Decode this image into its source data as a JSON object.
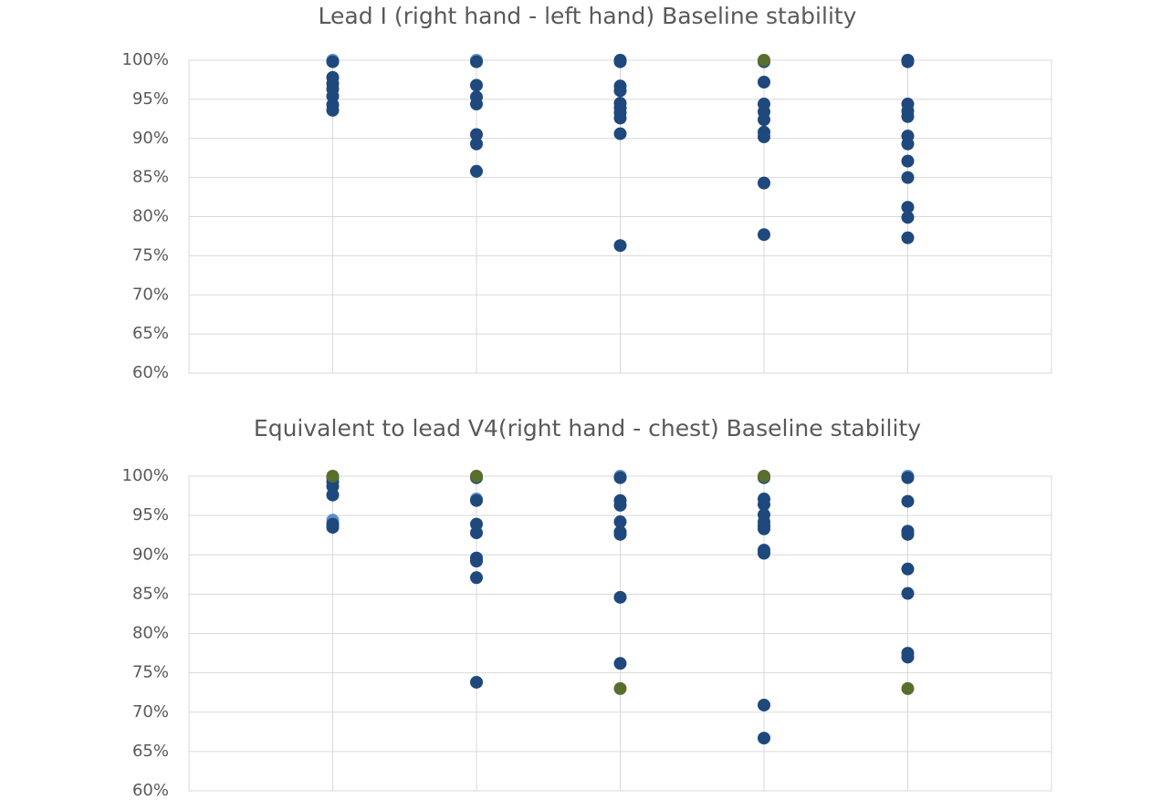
{
  "chart_data": [
    {
      "type": "scatter",
      "title": "Lead I (right hand - left hand) Baseline stability",
      "xlim": [
        0,
        6
      ],
      "xticks": [
        1,
        2,
        3,
        4,
        5
      ],
      "ylim": [
        60,
        100
      ],
      "yticks": [
        {
          "value": 60,
          "label": "60%"
        },
        {
          "value": 65,
          "label": "65%"
        },
        {
          "value": 70,
          "label": "70%"
        },
        {
          "value": 75,
          "label": "75%"
        },
        {
          "value": 80,
          "label": "80%"
        },
        {
          "value": 85,
          "label": "85%"
        },
        {
          "value": 90,
          "label": "90%"
        },
        {
          "value": 95,
          "label": "95%"
        },
        {
          "value": 100,
          "label": "100%"
        }
      ],
      "grid": true,
      "series": [
        {
          "color": "#5b8fc9",
          "x": [
            1,
            2
          ],
          "values": [
            100,
            100
          ]
        },
        {
          "color": "#1f497d",
          "x": [
            1,
            1,
            1,
            1,
            1,
            1,
            1,
            2,
            2,
            2,
            2,
            2,
            2,
            2,
            3,
            3,
            3,
            3,
            3,
            3,
            3,
            3,
            3,
            3,
            4,
            4,
            4,
            4,
            4,
            4,
            4,
            4,
            4,
            5,
            5,
            5,
            5,
            5,
            5,
            5,
            5,
            5,
            5,
            5,
            5
          ],
          "values": [
            99.8,
            97.8,
            97,
            96.3,
            95.4,
            94.3,
            93.6,
            99.8,
            96.8,
            95.3,
            94.4,
            90.5,
            89.3,
            85.8,
            100,
            99.8,
            96.7,
            96.1,
            94.5,
            93.9,
            93.3,
            92.6,
            90.6,
            76.3,
            99.8,
            97.2,
            94.4,
            93.4,
            92.4,
            90.8,
            90.2,
            84.3,
            77.7,
            100,
            99.8,
            94.4,
            93.5,
            92.8,
            90.3,
            89.3,
            87.1,
            85,
            81.2,
            79.9,
            77.3
          ]
        },
        {
          "color": "#5a6e2c",
          "x": [
            4
          ],
          "values": [
            100
          ]
        }
      ]
    },
    {
      "type": "scatter",
      "title": "Equivalent to lead V4(right hand - chest) Baseline stability",
      "xlim": [
        0,
        6
      ],
      "xticks": [
        1,
        2,
        3,
        4,
        5
      ],
      "ylim": [
        60,
        100
      ],
      "yticks": [
        {
          "value": 60,
          "label": "60%"
        },
        {
          "value": 65,
          "label": "65%"
        },
        {
          "value": 70,
          "label": "70%"
        },
        {
          "value": 75,
          "label": "75%"
        },
        {
          "value": 80,
          "label": "80%"
        },
        {
          "value": 85,
          "label": "85%"
        },
        {
          "value": 90,
          "label": "90%"
        },
        {
          "value": 95,
          "label": "95%"
        },
        {
          "value": 100,
          "label": "100%"
        }
      ],
      "grid": true,
      "series": [
        {
          "color": "#5b8fc9",
          "x": [
            1,
            2,
            3,
            5
          ],
          "values": [
            94.4,
            97.1,
            100,
            100
          ]
        },
        {
          "color": "#1f497d",
          "x": [
            1,
            1,
            1,
            1,
            1,
            1,
            2,
            2,
            2,
            2,
            2,
            2,
            2,
            2,
            3,
            3,
            3,
            3,
            3,
            3,
            3,
            3,
            4,
            4,
            4,
            4,
            4,
            4,
            4,
            4,
            4,
            4,
            4,
            5,
            5,
            5,
            5,
            5,
            5,
            5,
            5
          ],
          "values": [
            99.8,
            99.3,
            98.7,
            97.6,
            93.9,
            93.5,
            99.8,
            96.9,
            93.9,
            92.8,
            89.6,
            89.2,
            87.1,
            73.8,
            99.8,
            96.9,
            96.3,
            94.2,
            92.9,
            92.6,
            84.6,
            76.2,
            99.8,
            97.1,
            96.4,
            95.1,
            94.2,
            93.7,
            93.3,
            90.6,
            90.2,
            70.9,
            66.7,
            99.8,
            96.8,
            93,
            92.6,
            88.2,
            85.1,
            77.5,
            77
          ]
        },
        {
          "color": "#5a6e2c",
          "x": [
            1,
            2,
            3,
            4,
            5
          ],
          "values": [
            100,
            100,
            73,
            100,
            73
          ]
        }
      ]
    }
  ]
}
